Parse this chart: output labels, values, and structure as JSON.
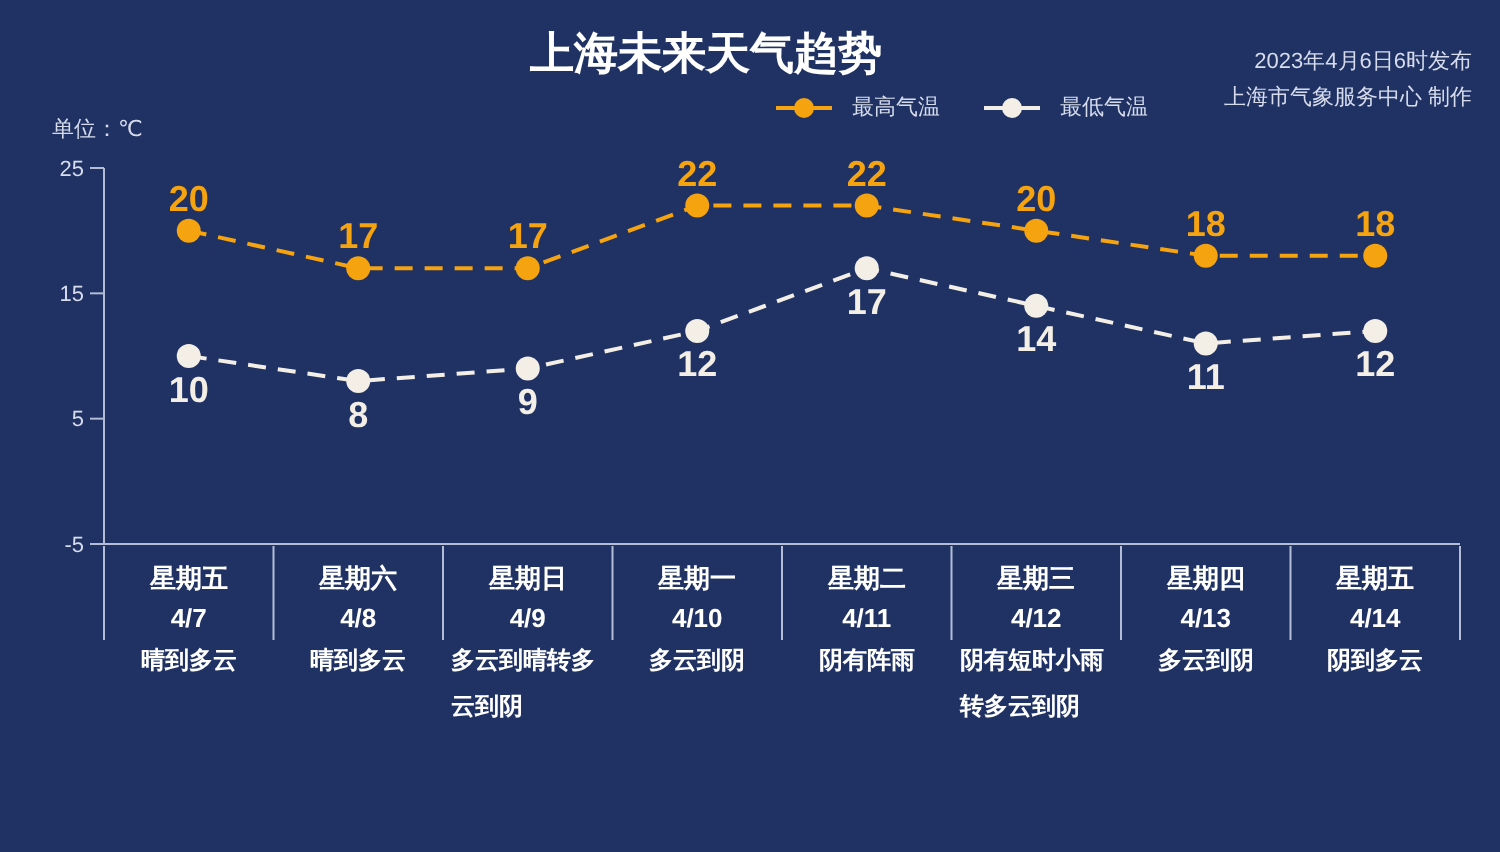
{
  "chart_data": {
    "type": "line",
    "title": "上海未来天气趋势",
    "ylabel": "单位：℃",
    "annotations": [
      "2023年4月6日6时发布",
      "上海市气象服务中心 制作"
    ],
    "categories": [
      "星期五\n4/7\n晴到多云",
      "星期六\n4/8\n晴到多云",
      "星期日\n4/9\n多云到晴转多云到阴",
      "星期一\n4/10\n多云到阴",
      "星期二\n4/11\n阴有阵雨",
      "星期三\n4/12\n阴有短时小雨转多云到阴",
      "星期四\n4/13\n多云到阴",
      "星期五\n4/14\n阴到多云"
    ],
    "series": [
      {
        "name": "最高气温",
        "color": "#f5a30f",
        "values": [
          20,
          17,
          17,
          22,
          22,
          20,
          18,
          18
        ]
      },
      {
        "name": "最低气温",
        "color": "#f4efe6",
        "values": [
          10,
          8,
          9,
          12,
          17,
          14,
          11,
          12
        ]
      }
    ],
    "ylim": [
      -5,
      25
    ],
    "yticks": [
      -5,
      5,
      15,
      25
    ],
    "legend": "top",
    "marker": "circle",
    "line_style": "dashed",
    "data_labels": true
  }
}
